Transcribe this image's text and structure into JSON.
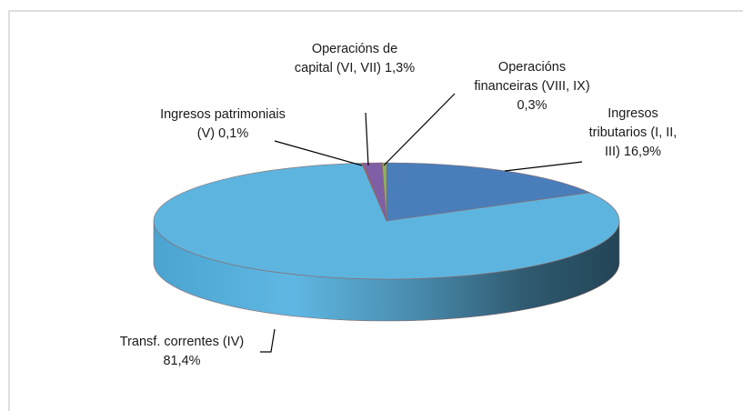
{
  "chart_data": {
    "type": "pie3d",
    "categories": [
      "Ingresos tributarios (I, II, III)",
      "Transf. correntes (IV)",
      "Ingresos patrimoniais (V)",
      "Operacións de capital (VI, VII)",
      "Operacións financeiras (VIII, IX)"
    ],
    "values": [
      16.9,
      81.4,
      0.1,
      1.3,
      0.3
    ],
    "value_labels": [
      "16,9%",
      "81,4%",
      "0,1%",
      "1,3%",
      "0,3%"
    ],
    "colors": [
      "#4a7ebb",
      "#5db5df",
      "#c0504d",
      "#7f5fa5",
      "#8db35a"
    ]
  }
}
